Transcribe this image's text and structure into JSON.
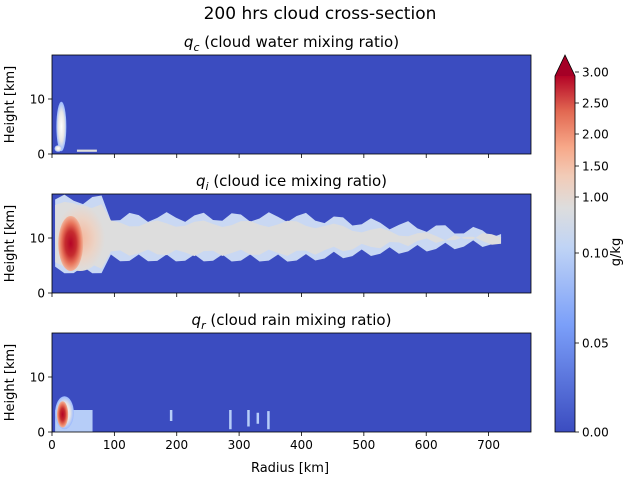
{
  "figure": {
    "title": "200 hrs cloud cross-section",
    "xlabel": "Radius [km]",
    "colorbar_label": "g/kg",
    "colors": {
      "background": "#3b4cc0",
      "mid": "#dddddd",
      "high": "#b40426",
      "max": "#a50026"
    }
  },
  "chart_data": [
    {
      "type": "heatmap",
      "panel": "qc",
      "title_symbol": "q",
      "title_sub": "c",
      "title_text": " (cloud water mixing ratio)",
      "ylabel": "Height [km]",
      "xlim": [
        0,
        768
      ],
      "ylim": [
        0,
        18
      ],
      "yticks": [
        0,
        10
      ],
      "regions": [
        {
          "shape": "ellipse",
          "cx": 15,
          "cy": 5,
          "rx": 8,
          "ry": 4.5,
          "value": 0.15
        },
        {
          "shape": "ellipse",
          "cx": 10,
          "cy": 1,
          "rx": 6,
          "ry": 0.6,
          "value": 0.2
        },
        {
          "shape": "rect",
          "x0": 40,
          "x1": 72,
          "y0": 0.4,
          "y1": 0.8,
          "value": 0.1
        }
      ]
    },
    {
      "type": "heatmap",
      "panel": "qi",
      "title_symbol": "q",
      "title_sub": "i",
      "title_text": " (cloud ice mixing ratio)",
      "ylabel": "Height [km]",
      "xlim": [
        0,
        768
      ],
      "ylim": [
        0,
        18
      ],
      "yticks": [
        0,
        10
      ],
      "regions": [
        {
          "shape": "band",
          "x0": 5,
          "x1": 720,
          "y0": 4,
          "y1": 17,
          "value": 0.1
        },
        {
          "shape": "ellipse",
          "cx": 45,
          "cy": 10,
          "rx": 40,
          "ry": 6,
          "value": 1.0
        },
        {
          "shape": "ellipse",
          "cx": 30,
          "cy": 9,
          "rx": 20,
          "ry": 5,
          "value": 3.0
        }
      ]
    },
    {
      "type": "heatmap",
      "panel": "qr",
      "title_symbol": "q",
      "title_sub": "r",
      "title_text": " (cloud rain mixing ratio)",
      "ylabel": "Height [km]",
      "xlim": [
        0,
        768
      ],
      "ylim": [
        0,
        18
      ],
      "yticks": [
        0,
        10
      ],
      "xticks": [
        0,
        100,
        200,
        300,
        400,
        500,
        600,
        700
      ],
      "regions": [
        {
          "shape": "rect",
          "x0": 5,
          "x1": 65,
          "y0": 0,
          "y1": 4,
          "value": 0.05
        },
        {
          "shape": "ellipse",
          "cx": 20,
          "cy": 3.5,
          "rx": 15,
          "ry": 3,
          "value": 0.5
        },
        {
          "shape": "ellipse",
          "cx": 17,
          "cy": 3.2,
          "rx": 9,
          "ry": 2.4,
          "value": 3.0
        },
        {
          "shape": "rect",
          "x0": 189,
          "x1": 193,
          "y0": 2,
          "y1": 4,
          "value": 0.05
        },
        {
          "shape": "rect",
          "x0": 284,
          "x1": 288,
          "y0": 0.5,
          "y1": 4,
          "value": 0.05
        },
        {
          "shape": "rect",
          "x0": 313,
          "x1": 317,
          "y0": 1,
          "y1": 4,
          "value": 0.05
        },
        {
          "shape": "rect",
          "x0": 328,
          "x1": 332,
          "y0": 1.5,
          "y1": 3.5,
          "value": 0.05
        },
        {
          "shape": "rect",
          "x0": 345,
          "x1": 349,
          "y0": 0.5,
          "y1": 3.8,
          "value": 0.05
        }
      ]
    }
  ],
  "colorbar": {
    "ticks": [
      "0.00",
      "0.05",
      "0.10",
      "1.00",
      "1.50",
      "2.00",
      "2.50",
      "3.00"
    ],
    "extend": "max"
  }
}
